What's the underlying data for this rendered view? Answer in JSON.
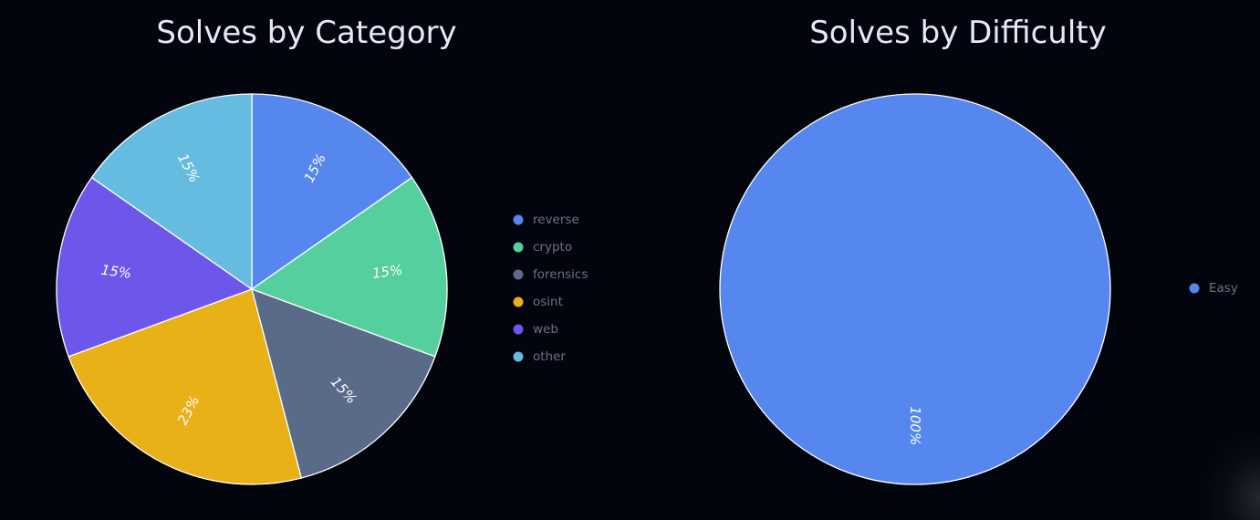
{
  "chart_data": [
    {
      "type": "pie",
      "title": "Solves by Category",
      "categories": [
        "reverse",
        "crypto",
        "forensics",
        "osint",
        "web",
        "other"
      ],
      "values": [
        15,
        15,
        15,
        23,
        15,
        15
      ],
      "labels": [
        "15%",
        "15%",
        "15%",
        "23%",
        "15%",
        "15%"
      ],
      "colors": [
        "#5687ee",
        "#55cf9d",
        "#5a6b8a",
        "#e8b118",
        "#6c57ea",
        "#66bce0"
      ],
      "legend_position": "right"
    },
    {
      "type": "pie",
      "title": "Solves by Difficulty",
      "categories": [
        "Easy"
      ],
      "values": [
        100
      ],
      "labels": [
        "100%"
      ],
      "colors": [
        "#5687ee"
      ],
      "legend_position": "right"
    }
  ],
  "theme": {
    "background": "#02050d",
    "title_color": "#e6e8f5",
    "legend_text_color": "#6b7183"
  }
}
